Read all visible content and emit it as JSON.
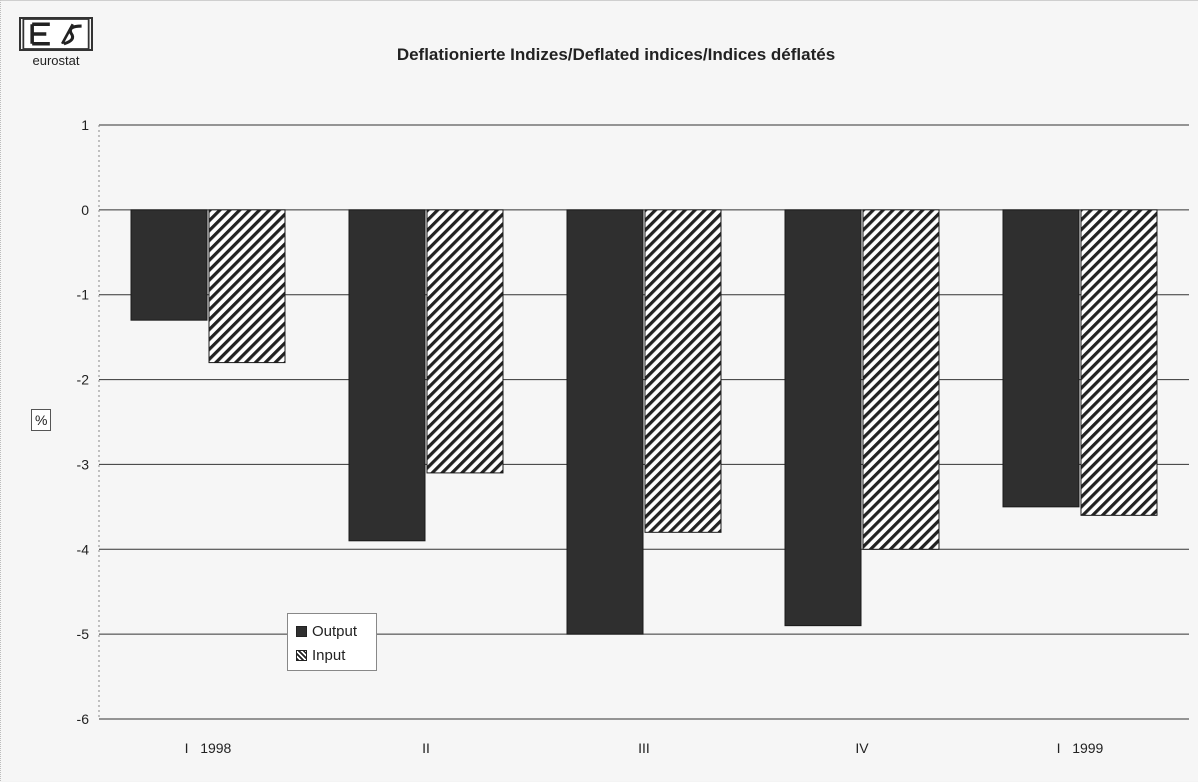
{
  "logo": {
    "word": "eurostat"
  },
  "chart_data": {
    "type": "bar",
    "title": "Deflationierte Indizes/Deflated indices/Indices déflatés",
    "ylabel": "%",
    "xlabel": "",
    "ylim": [
      -6,
      1
    ],
    "yticks": [
      "1",
      "0",
      "-1",
      "-2",
      "-3",
      "-4",
      "-5",
      "-6"
    ],
    "categories": [
      "I   1998",
      "II",
      "III",
      "IV",
      "I   1999"
    ],
    "series": [
      {
        "name": "Output",
        "values": [
          -1.3,
          -3.9,
          -5.0,
          -4.9,
          -3.5
        ],
        "color": "#2f2f2f",
        "pattern": "solid"
      },
      {
        "name": "Input",
        "values": [
          -1.8,
          -3.1,
          -3.8,
          -4.0,
          -3.6
        ],
        "color": "#222222",
        "pattern": "diagonal-hatch"
      }
    ],
    "grid": true,
    "legend_position": "bottom-left"
  }
}
